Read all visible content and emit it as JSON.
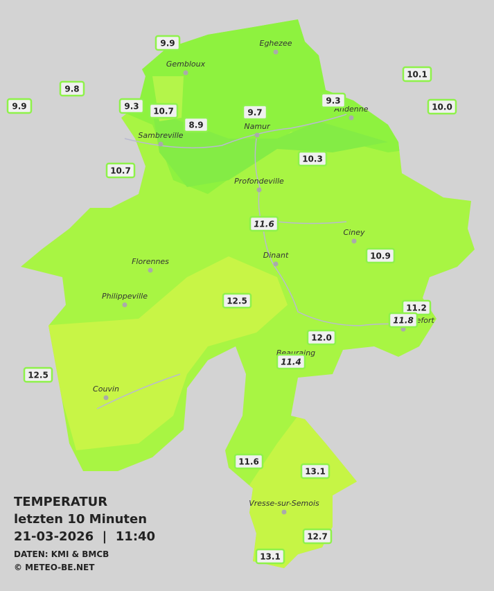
{
  "title": {
    "heading": "TEMPERATUR",
    "period": "letzten 10 Minuten",
    "datetime": "21-03-2026  |  11:40",
    "source": "DATEN: KMI & BMCB",
    "credit": "© METEO-BE.NET"
  },
  "towns": [
    "Eghezee",
    "Gembloux",
    "Andenne",
    "Namur",
    "Sambreville",
    "Profondeville",
    "Ciney",
    "Dinant",
    "Florennes",
    "Philippeville",
    "Rochefort",
    "Beauraing",
    "Couvin",
    "Vresse-sur-Semois"
  ],
  "stations": [
    "9.9",
    "9.8",
    "9.9",
    "9.3",
    "10.7",
    "8.9",
    "9.7",
    "9.3",
    "10.1",
    "10.0",
    "10.7",
    "10.3",
    "11.6",
    "10.9",
    "12.5",
    "11.2",
    "11.8",
    "12.0",
    "11.4",
    "12.5",
    "11.6",
    "13.1",
    "12.7",
    "13.1"
  ]
}
